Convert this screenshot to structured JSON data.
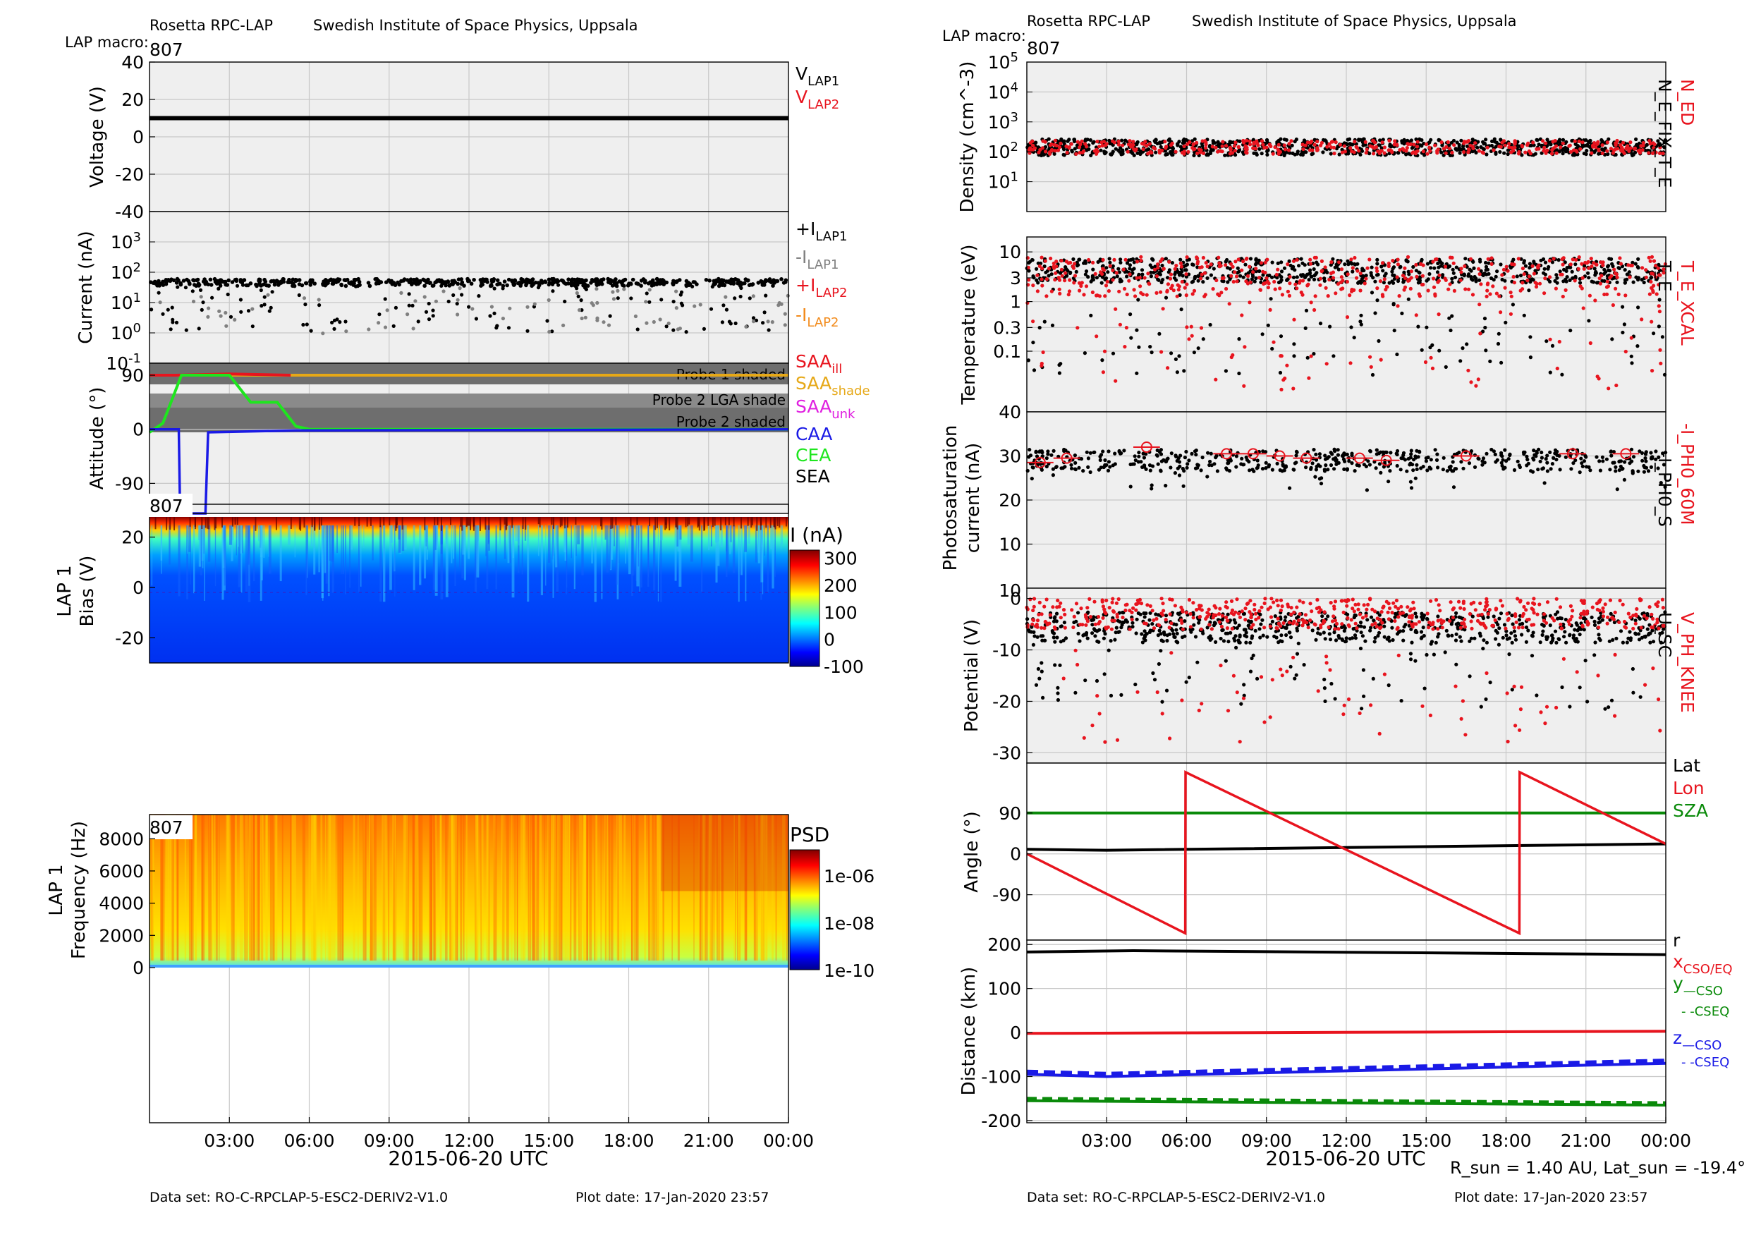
{
  "header": {
    "left_instrument": "Rosetta RPC-LAP",
    "left_institute": "Swedish Institute of Space Physics, Uppsala",
    "left_macro_label": "LAP macro:",
    "left_macro_value": "807",
    "right_instrument": "Rosetta RPC-LAP",
    "right_institute": "Swedish Institute of Space Physics, Uppsala",
    "right_macro_label": "LAP macro:",
    "right_macro_value": "807"
  },
  "footer": {
    "left_dataset": "Data set: RO-C-RPCLAP-5-ESC2-DERIV2-V1.0",
    "left_plotdate": "Plot date: 17-Jan-2020 23:57",
    "right_dataset": "Data set: RO-C-RPCLAP-5-ESC2-DERIV2-V1.0",
    "right_plotdate": "Plot date: 17-Jan-2020 23:57",
    "sun_info": "R_sun = 1.40 AU, Lat_sun = -19.4°"
  },
  "colors": {
    "black": "#000000",
    "gray": "#808080",
    "red": "#e8141e",
    "orange": "#f28a1a",
    "gold": "#e6a817",
    "magenta": "#e020e0",
    "blue": "#1a1ae6",
    "green": "#1ee61e",
    "darkgreen": "#0a8a0a",
    "panel_bg": "#efefef",
    "shade": "#6e6e6e"
  },
  "chart_data": [
    {
      "id": "voltage",
      "type": "line",
      "ylabel": "Voltage (V)",
      "ylim": [
        -40,
        40
      ],
      "yticks": [
        "40",
        "20",
        "0",
        "-20",
        "-40"
      ],
      "legend": [
        "V_LAP1",
        "V_LAP2"
      ],
      "series": [
        {
          "name": "V_LAP1",
          "x": [
            0,
            24
          ],
          "values": [
            10,
            10
          ]
        }
      ]
    },
    {
      "id": "current",
      "type": "scatter",
      "yscale": "log",
      "ylabel": "Current (nA)",
      "ylim": [
        0.1,
        10000
      ],
      "yticks": [
        "10^3",
        "10^2",
        "10^1",
        "10^0",
        "10^-1"
      ],
      "legend": [
        "+I_LAP1",
        "-I_LAP1",
        "+I_LAP2",
        "-I_LAP2"
      ],
      "typical_value": 40
    },
    {
      "id": "attitude",
      "type": "line",
      "ylabel": "Attitude (°)",
      "ylim": [
        -140,
        110
      ],
      "yticks": [
        "90",
        "0",
        "-90"
      ],
      "annotations": [
        "Probe 1 shaded",
        "Probe 2 LGA shade",
        "Probe 2 shaded"
      ],
      "legend": [
        "SAA_ill",
        "SAA_shade",
        "SAA_unk",
        "CAA",
        "CEA",
        "SEA"
      ],
      "series": [
        {
          "name": "SAA_ill",
          "x": [
            0,
            1,
            3,
            5.3
          ],
          "values": [
            90,
            90,
            92,
            90
          ]
        },
        {
          "name": "SAA_shade",
          "x": [
            0,
            24
          ],
          "values": [
            90,
            90
          ]
        },
        {
          "name": "CEA",
          "x": [
            0,
            0.5,
            1.2,
            2.5,
            3.0,
            3.8,
            4.8,
            5.5,
            6.0,
            24
          ],
          "values": [
            -5,
            10,
            90,
            90,
            90,
            45,
            45,
            5,
            0,
            0
          ]
        },
        {
          "name": "CAA",
          "x": [
            0,
            1.1,
            1.15,
            1.25,
            2.0,
            2.1,
            2.2,
            5.5,
            24
          ],
          "values": [
            0,
            0,
            -140,
            -140,
            -140,
            -140,
            -5,
            -2,
            0
          ]
        }
      ]
    },
    {
      "id": "bias_spectrogram",
      "type": "heatmap",
      "macro": "807",
      "ylabel": "LAP 1 Bias (V)",
      "ylim": [
        -30,
        28
      ],
      "yticks": [
        "20",
        "0",
        "-20"
      ],
      "colorbar_label": "I (nA)",
      "colorbar_range": [
        -100,
        330
      ],
      "colorbar_ticks": [
        "300",
        "200",
        "100",
        "0",
        "-100"
      ]
    },
    {
      "id": "freq_spectrogram",
      "type": "heatmap",
      "macro": "807",
      "ylabel": "LAP 1 Frequency (Hz)",
      "ylim": [
        0,
        9500
      ],
      "yticks": [
        "8000",
        "6000",
        "4000",
        "2000",
        "0"
      ],
      "colorbar_label": "PSD",
      "colorbar_range": [
        "1e-10",
        "1e-05"
      ],
      "colorbar_ticks": [
        "1e-06",
        "1e-08",
        "1e-10"
      ]
    },
    {
      "id": "density",
      "type": "scatter",
      "yscale": "log",
      "ylabel": "Density (cm^-3)",
      "ylim": [
        1,
        100000
      ],
      "yticks": [
        "10^5",
        "10^4",
        "10^3",
        "10^2",
        "10^1"
      ],
      "legend": [
        "N_ED",
        "N_E_FIX_T_E"
      ],
      "typical_value": 150
    },
    {
      "id": "temperature",
      "type": "scatter",
      "yscale": "log",
      "ylabel": "Temperature (eV)",
      "ylim": [
        0.006,
        20
      ],
      "yticks": [
        "10",
        "3",
        "1",
        "0.3",
        "0.1",
        "40"
      ],
      "legend": [
        "T_E_XCAL",
        "T_E"
      ],
      "typical_value": 4
    },
    {
      "id": "photosat",
      "type": "scatter",
      "ylabel": "Photosaturation current (nA)",
      "ylim": [
        0,
        40
      ],
      "yticks": [
        "30",
        "20",
        "10"
      ],
      "legend": [
        "-I_PH0_60M",
        "-I_PH0_S"
      ],
      "typical_value": 29,
      "hourly_means": [
        {
          "t": 0.5,
          "v": 28.5
        },
        {
          "t": 1.5,
          "v": 29.5
        },
        {
          "t": 4.5,
          "v": 32
        },
        {
          "t": 7.5,
          "v": 30.5
        },
        {
          "t": 8.5,
          "v": 30.5
        },
        {
          "t": 9.5,
          "v": 30
        },
        {
          "t": 10.5,
          "v": 29.5
        },
        {
          "t": 12.5,
          "v": 29.5
        },
        {
          "t": 13.5,
          "v": 29
        },
        {
          "t": 16.5,
          "v": 30
        },
        {
          "t": 20.5,
          "v": 30.5
        },
        {
          "t": 22.5,
          "v": 30.5
        }
      ]
    },
    {
      "id": "potential",
      "type": "scatter",
      "ylabel": "Potential (V)",
      "ylim": [
        -32,
        2
      ],
      "yticks": [
        "0",
        "-10",
        "-20",
        "-30",
        "10"
      ],
      "legend": [
        "V_PH_KNEE",
        "U_SC"
      ],
      "typical_value": -5
    },
    {
      "id": "angle",
      "type": "line",
      "ylabel": "Angle (°)",
      "ylim": [
        -190,
        200
      ],
      "yticks": [
        "90",
        "0",
        "-90"
      ],
      "legend": [
        "Lat",
        "Lon",
        "SZA"
      ],
      "series": [
        {
          "name": "Lat",
          "x": [
            0,
            3,
            24
          ],
          "values": [
            10,
            8,
            22
          ]
        },
        {
          "name": "Lon",
          "x": [
            0,
            5.95,
            5.96,
            18.5,
            18.51,
            24
          ],
          "values": [
            0,
            -175,
            180,
            -175,
            180,
            22
          ]
        },
        {
          "name": "SZA",
          "x": [
            0,
            24
          ],
          "values": [
            90,
            90
          ]
        }
      ]
    },
    {
      "id": "distance",
      "type": "line",
      "ylabel": "Distance (km)",
      "ylim": [
        -205,
        210
      ],
      "yticks": [
        "200",
        "100",
        "0",
        "-100",
        "-200"
      ],
      "legend": [
        "r",
        "x_CSO/EQ",
        "y —CSO",
        "- -CSEQ",
        "z —CSO",
        "- -CSEQ"
      ],
      "series": [
        {
          "name": "r",
          "x": [
            0,
            4,
            24
          ],
          "values": [
            183,
            186,
            177
          ]
        },
        {
          "name": "x",
          "x": [
            0,
            24
          ],
          "values": [
            -2,
            3
          ]
        },
        {
          "name": "y",
          "x": [
            0,
            24
          ],
          "values": [
            -155,
            -165
          ]
        },
        {
          "name": "z",
          "x": [
            0,
            3,
            24
          ],
          "values": [
            -95,
            -100,
            -70
          ]
        }
      ]
    }
  ],
  "axes": {
    "time_ticks": [
      "03:00",
      "06:00",
      "09:00",
      "12:00",
      "15:00",
      "18:00",
      "21:00",
      "00:00"
    ],
    "time_label": "2015-06-20 UTC"
  }
}
